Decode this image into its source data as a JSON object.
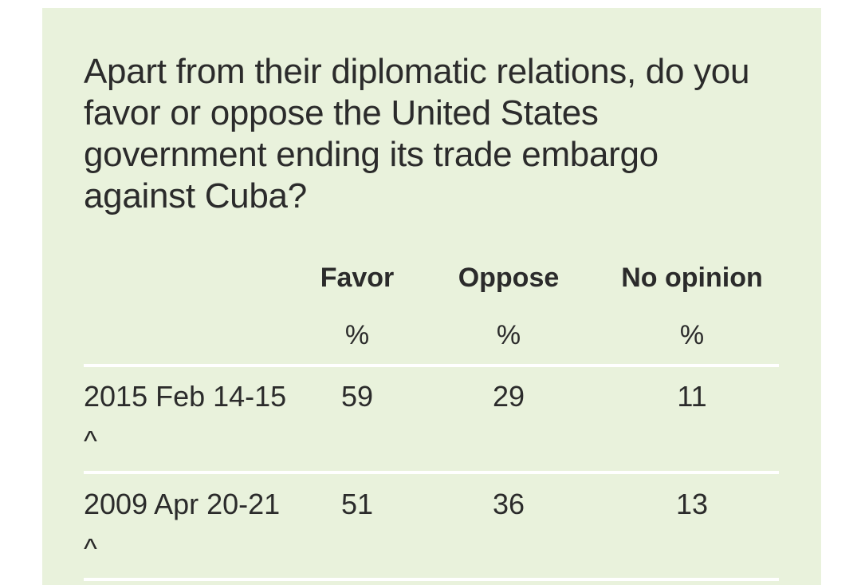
{
  "question": "Apart from their diplomatic relations, do you favor or oppose the United States government ending its trade embargo against Cuba?",
  "table": {
    "headers": [
      "Favor",
      "Oppose",
      "No opinion"
    ],
    "units": [
      "%",
      "%",
      "%"
    ],
    "rows": [
      {
        "date": "2015 Feb 14-15 ^",
        "favor": "59",
        "oppose": "29",
        "no_opinion": "11"
      },
      {
        "date": "2009 Apr 20-21 ^",
        "favor": "51",
        "oppose": "36",
        "no_opinion": "13"
      }
    ]
  },
  "colors": {
    "card_background": "#e9f2dc",
    "text": "#2b2b2b",
    "divider": "#ffffff"
  }
}
